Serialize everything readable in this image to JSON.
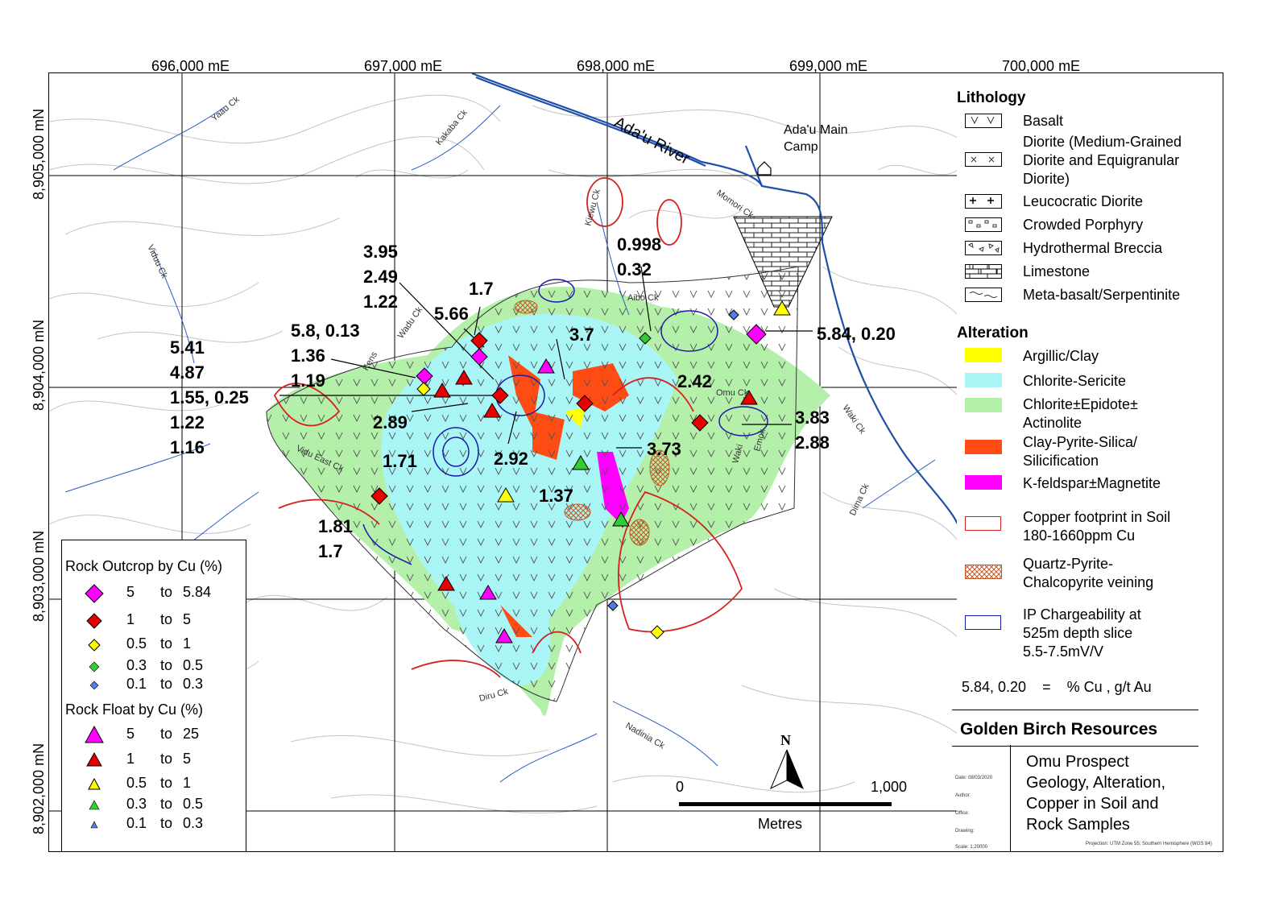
{
  "grid": {
    "eastings": [
      "696,000 mE",
      "697,000 mE",
      "698,000 mE",
      "699,000 mE",
      "700,000 mE"
    ],
    "northings": [
      "8,905,000 mN",
      "8,904,000 mN",
      "8,903,000 mN",
      "8,902,000 mN"
    ]
  },
  "map": {
    "river_label": "Ada'u River",
    "camp_label": "Ada'u Main\nCamp",
    "creeks": [
      "Yaau Ck",
      "Kakaba Ck",
      "Viduu Ck",
      "Kiewu Ck",
      "Momori Ck",
      "Aibo Ck",
      "Waki Ck",
      "Dima Ck",
      "Diru Ck",
      "Nadinia Ck",
      "Vidu East Ck",
      "Omu Ck",
      "Wadu Ck",
      "Kens",
      "Waki",
      "Emok"
    ]
  },
  "value_labels": {
    "l1": "3.95\n2.49\n1.22",
    "l2": "1.7",
    "l3": "5.66",
    "l4": "3.7",
    "l5": "0.998\n0.32",
    "l6": "5.8, 0.13\n1.36\n1.19",
    "l7": "5.41\n4.87\n1.55, 0.25\n1.22\n1.16",
    "l8": "2.89",
    "l9": "2.42",
    "l10": "3.83\n2.88",
    "l11": "5.84, 0.20",
    "l12": "1.71",
    "l13": "2.92",
    "l14": "3.73",
    "l15": "1.37",
    "l16": "1.81\n1.7"
  },
  "scale_bar": {
    "start": "0",
    "end": "1,000",
    "unit": "Metres"
  },
  "north_arrow": "N",
  "rock_legend": {
    "outcrop_title": "Rock Outcrop by Cu (%)",
    "outcrop": [
      {
        "from": "5",
        "to": "to",
        "val": "5.84",
        "color": "#ff00ff"
      },
      {
        "from": "1",
        "to": "to",
        "val": "5",
        "color": "#e60000"
      },
      {
        "from": "0.5",
        "to": "to",
        "val": "1",
        "color": "#ffff00"
      },
      {
        "from": "0.3",
        "to": "to",
        "val": "0.5",
        "color": "#33cc33"
      },
      {
        "from": "0.1",
        "to": "to",
        "val": "0.3",
        "color": "#4f7fe0"
      }
    ],
    "float_title": "Rock Float by Cu (%)",
    "float": [
      {
        "from": "5",
        "to": "to",
        "val": "25",
        "color": "#ff00ff"
      },
      {
        "from": "1",
        "to": "to",
        "val": "5",
        "color": "#e60000"
      },
      {
        "from": "0.5",
        "to": "to",
        "val": "1",
        "color": "#ffff00"
      },
      {
        "from": "0.3",
        "to": "to",
        "val": "0.5",
        "color": "#33cc33"
      },
      {
        "from": "0.1",
        "to": "to",
        "val": "0.3",
        "color": "#4f7fe0"
      }
    ]
  },
  "legend": {
    "lithology_title": "Lithology",
    "lithology": [
      "Basalt",
      "Diorite (Medium-Grained\nDiorite and Equigranular\nDiorite)",
      "Leucocratic Diorite",
      "Crowded Porphyry",
      "Hydrothermal Breccia",
      "Limestone",
      "Meta-basalt/Serpentinite"
    ],
    "alteration_title": "Alteration",
    "alteration": [
      {
        "label": "Argillic/Clay",
        "color": "#ffff00"
      },
      {
        "label": "Chlorite-Sericite",
        "color": "#aaf5f5"
      },
      {
        "label": "Chlorite±Epidote±\nActinolite",
        "color": "#b4f0aa"
      },
      {
        "label": "Clay-Pyrite-Silica/\nSilicification",
        "color": "#ff4b14"
      },
      {
        "label": "K-feldspar±Magnetite",
        "color": "#ff00ff"
      }
    ],
    "copper": "Copper footprint in Soil\n180-1660ppm Cu",
    "quartz": "Quartz-Pyrite-\nChalcopyrite veining",
    "ip": "IP Chargeability at\n525m depth slice\n5.5-7.5mV/V",
    "units_note": "5.84, 0.20    =    % Cu , g/t Au"
  },
  "title_block": {
    "company": "Golden Birch Resources",
    "title": "Omu Prospect\nGeology, Alteration,\nCopper in Soil and\nRock Samples",
    "date": "Date: 08/03/2020",
    "author": "Author:",
    "office": "Office:",
    "drawing": "Drawing:",
    "scale": "Scale: 1:20000",
    "projection": "Projection: UTM Zone 55, Southern Hemisphere (WGS 84)"
  },
  "colors": {
    "copper": "#d62020",
    "ip": "#1a1aa8",
    "river": "#1f4fa8",
    "contour": "#bdbdbd"
  }
}
